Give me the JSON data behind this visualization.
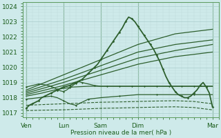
{
  "bg_color": "#ceeaea",
  "plot_bg": "#ceeaea",
  "grid_color_major": "#aacccc",
  "grid_color_minor": "#bcd8d8",
  "line_color": "#2d5f2d",
  "ylabel_text": "Pression niveau de la mer( hPa )",
  "yticks": [
    1017,
    1018,
    1019,
    1020,
    1021,
    1022,
    1023,
    1024
  ],
  "ylim": [
    1016.7,
    1024.3
  ],
  "xtick_labels": [
    "Ven",
    "Lun",
    "Sam",
    "Dim",
    "Mar"
  ],
  "xtick_positions": [
    0,
    24,
    48,
    72,
    120
  ],
  "xlim": [
    -2,
    124
  ],
  "vline_positions": [
    0,
    24,
    48,
    72,
    120
  ],
  "series": [
    {
      "x": [
        0,
        2,
        4,
        6,
        8,
        10,
        12,
        14,
        16,
        18,
        20,
        22,
        24,
        26,
        28,
        30,
        32,
        34,
        36,
        38,
        40,
        42,
        44,
        46,
        48,
        50,
        52,
        54,
        56,
        58,
        60,
        62,
        64,
        66,
        68,
        70,
        72,
        74,
        76,
        78,
        80,
        82,
        84,
        86,
        88,
        90,
        92,
        94,
        96,
        98,
        100,
        102,
        104,
        106,
        108,
        110,
        112,
        114,
        116,
        118,
        120
      ],
      "y": [
        1017.3,
        1017.5,
        1017.6,
        1017.7,
        1017.8,
        1018.0,
        1018.1,
        1018.2,
        1018.3,
        1018.4,
        1018.5,
        1018.6,
        1018.7,
        1018.75,
        1018.8,
        1018.9,
        1019.0,
        1019.1,
        1019.2,
        1019.4,
        1019.6,
        1019.8,
        1020.0,
        1020.2,
        1020.5,
        1020.8,
        1021.1,
        1021.4,
        1021.7,
        1022.0,
        1022.3,
        1022.6,
        1023.0,
        1023.3,
        1023.2,
        1023.0,
        1022.7,
        1022.4,
        1022.1,
        1021.8,
        1021.5,
        1021.2,
        1020.8,
        1020.4,
        1019.9,
        1019.4,
        1019.0,
        1018.7,
        1018.4,
        1018.2,
        1018.1,
        1018.0,
        1018.0,
        1018.1,
        1018.3,
        1018.5,
        1018.8,
        1019.0,
        1018.7,
        1018.3,
        1017.4
      ],
      "style": "-",
      "lw": 1.3,
      "marker": "D",
      "ms": 1.8,
      "color": "#2d5f2d",
      "zorder": 5
    },
    {
      "x": [
        0,
        24,
        48,
        72,
        96,
        120
      ],
      "y": [
        1018.5,
        1019.5,
        1020.5,
        1021.5,
        1022.2,
        1022.5
      ],
      "style": "-",
      "lw": 0.9,
      "marker": null,
      "ms": 0,
      "color": "#2d5f2d",
      "zorder": 3
    },
    {
      "x": [
        0,
        24,
        48,
        72,
        96,
        120
      ],
      "y": [
        1018.4,
        1019.2,
        1020.1,
        1021.0,
        1021.5,
        1021.8
      ],
      "style": "-",
      "lw": 0.9,
      "marker": null,
      "ms": 0,
      "color": "#2d5f2d",
      "zorder": 3
    },
    {
      "x": [
        0,
        24,
        48,
        72,
        96,
        120
      ],
      "y": [
        1018.3,
        1019.0,
        1019.8,
        1020.6,
        1021.1,
        1021.5
      ],
      "style": "-",
      "lw": 0.9,
      "marker": null,
      "ms": 0,
      "color": "#2d5f2d",
      "zorder": 3
    },
    {
      "x": [
        0,
        24,
        48,
        72,
        96,
        120
      ],
      "y": [
        1018.2,
        1018.8,
        1019.5,
        1020.2,
        1020.7,
        1021.0
      ],
      "style": "-",
      "lw": 0.9,
      "marker": null,
      "ms": 0,
      "color": "#2d5f2d",
      "zorder": 3
    },
    {
      "x": [
        0,
        10,
        20,
        30,
        40,
        50,
        60,
        70,
        80,
        90,
        100,
        110,
        120
      ],
      "y": [
        1018.1,
        1018.3,
        1018.55,
        1018.7,
        1018.75,
        1018.75,
        1018.75,
        1018.75,
        1018.75,
        1018.75,
        1018.75,
        1018.75,
        1018.75
      ],
      "style": "-",
      "lw": 0.9,
      "marker": null,
      "ms": 0,
      "color": "#2d5f2d",
      "zorder": 3
    },
    {
      "x": [
        0,
        8,
        16,
        20,
        24,
        28,
        32,
        36,
        40,
        48,
        60,
        72,
        84,
        96,
        108,
        120
      ],
      "y": [
        1017.9,
        1018.0,
        1018.1,
        1018.0,
        1017.8,
        1017.6,
        1017.5,
        1017.7,
        1017.9,
        1018.0,
        1018.1,
        1018.2,
        1018.2,
        1018.2,
        1018.2,
        1018.2
      ],
      "style": "-",
      "lw": 0.9,
      "marker": "D",
      "ms": 1.5,
      "color": "#2d5f2d",
      "zorder": 3
    },
    {
      "x": [
        0,
        12,
        24,
        36,
        48,
        60,
        72,
        84,
        96,
        108,
        120
      ],
      "y": [
        1017.5,
        1017.55,
        1017.6,
        1017.65,
        1017.7,
        1017.72,
        1017.75,
        1017.78,
        1017.8,
        1017.75,
        1017.6
      ],
      "style": "--",
      "lw": 0.8,
      "marker": null,
      "ms": 0,
      "color": "#2d5f2d",
      "zorder": 2
    },
    {
      "x": [
        0,
        12,
        24,
        36,
        48,
        60,
        72,
        84,
        96,
        108,
        120
      ],
      "y": [
        1017.15,
        1017.18,
        1017.2,
        1017.25,
        1017.3,
        1017.32,
        1017.35,
        1017.38,
        1017.4,
        1017.35,
        1017.2
      ],
      "style": "--",
      "lw": 0.8,
      "marker": null,
      "ms": 0,
      "color": "#2d5f2d",
      "zorder": 2
    },
    {
      "x": [
        0,
        4,
        8,
        12,
        16,
        18,
        20,
        22,
        24,
        26,
        28,
        30,
        32,
        34,
        36,
        40,
        44,
        48,
        52,
        56,
        60,
        64,
        68,
        72,
        76,
        80,
        84,
        88,
        92,
        96,
        100,
        104,
        108,
        112,
        116,
        120
      ],
      "y": [
        1018.7,
        1018.8,
        1018.9,
        1018.85,
        1018.75,
        1018.65,
        1018.55,
        1018.45,
        1018.4,
        1018.5,
        1018.65,
        1018.8,
        1018.95,
        1019.05,
        1019.0,
        1018.9,
        1018.8,
        1018.75,
        1018.75,
        1018.75,
        1018.75,
        1018.75,
        1018.75,
        1018.75,
        1018.75,
        1018.75,
        1018.75,
        1018.75,
        1018.75,
        1018.75,
        1018.75,
        1018.75,
        1018.75,
        1018.75,
        1018.75,
        1018.75
      ],
      "style": "-",
      "lw": 0.9,
      "marker": "D",
      "ms": 1.5,
      "color": "#2d5f2d",
      "zorder": 3
    }
  ]
}
